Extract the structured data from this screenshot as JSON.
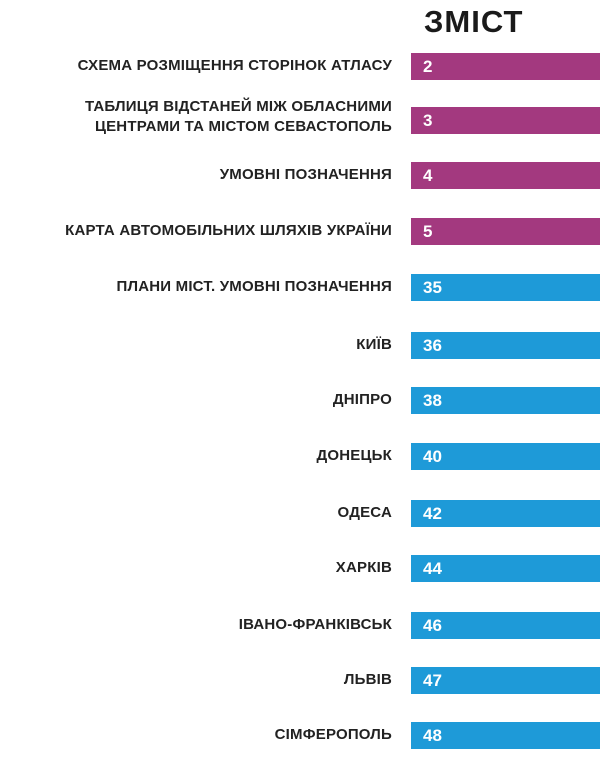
{
  "title": "ЗМІСТ",
  "colors": {
    "section": "#a3397f",
    "city": "#1e9ad8"
  },
  "entries": [
    {
      "label": "СХЕМА РОЗМІЩЕННЯ СТОРІНОК АТЛАСУ",
      "page": "2",
      "kind": "section"
    },
    {
      "label": "ТАБЛИЦЯ ВІДСТАНЕЙ МІЖ ОБЛАСНИМИ\nЦЕНТРАМИ ТА МІСТОМ СЕВАСТОПОЛЬ",
      "page": "3",
      "kind": "section"
    },
    {
      "label": "УМОВНІ ПОЗНАЧЕННЯ",
      "page": "4",
      "kind": "section"
    },
    {
      "label": "КАРТА АВТОМОБІЛЬНИХ ШЛЯХІВ УКРАЇНИ",
      "page": "5",
      "kind": "section"
    },
    {
      "label": "ПЛАНИ МІСТ. УМОВНІ ПОЗНАЧЕННЯ",
      "page": "35",
      "kind": "city"
    },
    {
      "label": "КИЇВ",
      "page": "36",
      "kind": "city"
    },
    {
      "label": "ДНІПРО",
      "page": "38",
      "kind": "city"
    },
    {
      "label": "ДОНЕЦЬК",
      "page": "40",
      "kind": "city"
    },
    {
      "label": "ОДЕСА",
      "page": "42",
      "kind": "city"
    },
    {
      "label": "ХАРКІВ",
      "page": "44",
      "kind": "city"
    },
    {
      "label": "ІВАНО-ФРАНКІВСЬК",
      "page": "46",
      "kind": "city"
    },
    {
      "label": "ЛЬВІВ",
      "page": "47",
      "kind": "city"
    },
    {
      "label": "СІМФЕРОПОЛЬ",
      "page": "48",
      "kind": "city"
    }
  ]
}
